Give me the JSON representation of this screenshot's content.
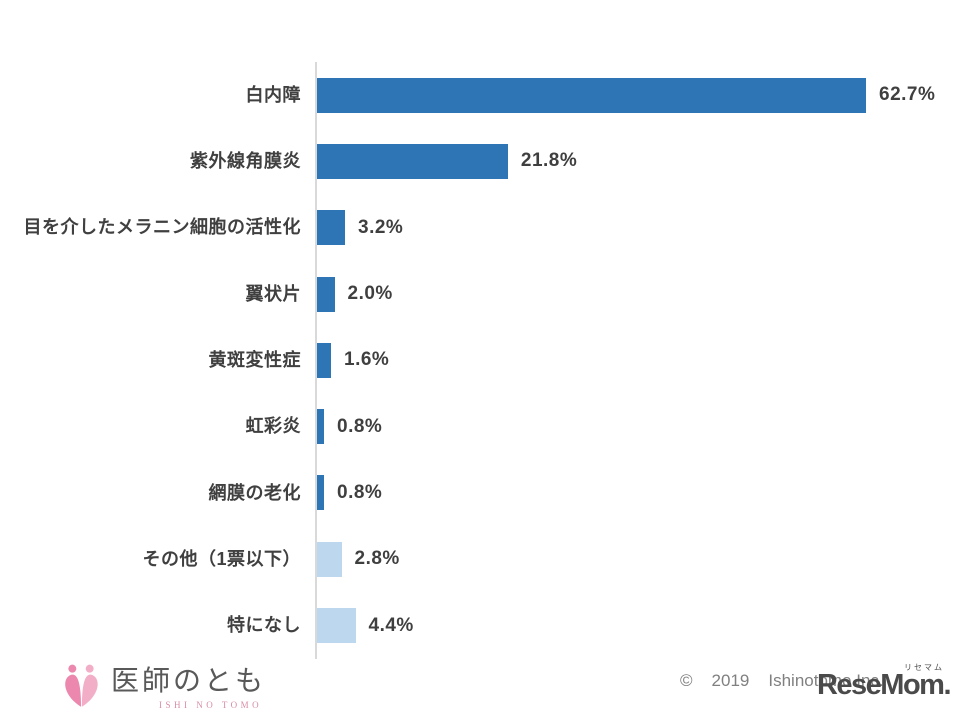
{
  "chart_data": {
    "type": "bar",
    "orientation": "horizontal",
    "title": "",
    "xlabel": "",
    "ylabel": "",
    "xlim": [
      0,
      70
    ],
    "grid": false,
    "legend": false,
    "categories": [
      "白内障",
      "紫外線角膜炎",
      "目を介したメラニン細胞の活性化",
      "翼状片",
      "黄斑変性症",
      "虹彩炎",
      "網膜の老化",
      "その他（1票以下）",
      "特になし"
    ],
    "values": [
      62.7,
      21.8,
      3.2,
      2.0,
      1.6,
      0.8,
      0.8,
      2.8,
      4.4
    ],
    "value_labels": [
      "62.7%",
      "21.8%",
      "3.2%",
      "2.0%",
      "1.6%",
      "0.8%",
      "0.8%",
      "2.8%",
      "4.4%"
    ],
    "bar_colors": [
      "#2e75b6",
      "#2e75b6",
      "#2e75b6",
      "#2e75b6",
      "#2e75b6",
      "#2e75b6",
      "#2e75b6",
      "#bdd7ee",
      "#bdd7ee"
    ]
  },
  "colors": {
    "bar_dark_blue": "#2e75b6",
    "bar_light_blue": "#bdd7ee",
    "axis_line": "#d9d9d9",
    "label_text": "#404040",
    "copyright_text": "#808080",
    "brand_pink": "#d98ca6"
  },
  "footer": {
    "brand": {
      "icon": "heart-figures-icon",
      "name": "医師のとも",
      "romanized": "ISHI NO TOMO"
    },
    "copyright": {
      "symbol": "©",
      "year": "2019",
      "company": "Ishinotomo Inc."
    },
    "watermark": {
      "ruby": "リセマム",
      "text": "ReseMom."
    }
  }
}
